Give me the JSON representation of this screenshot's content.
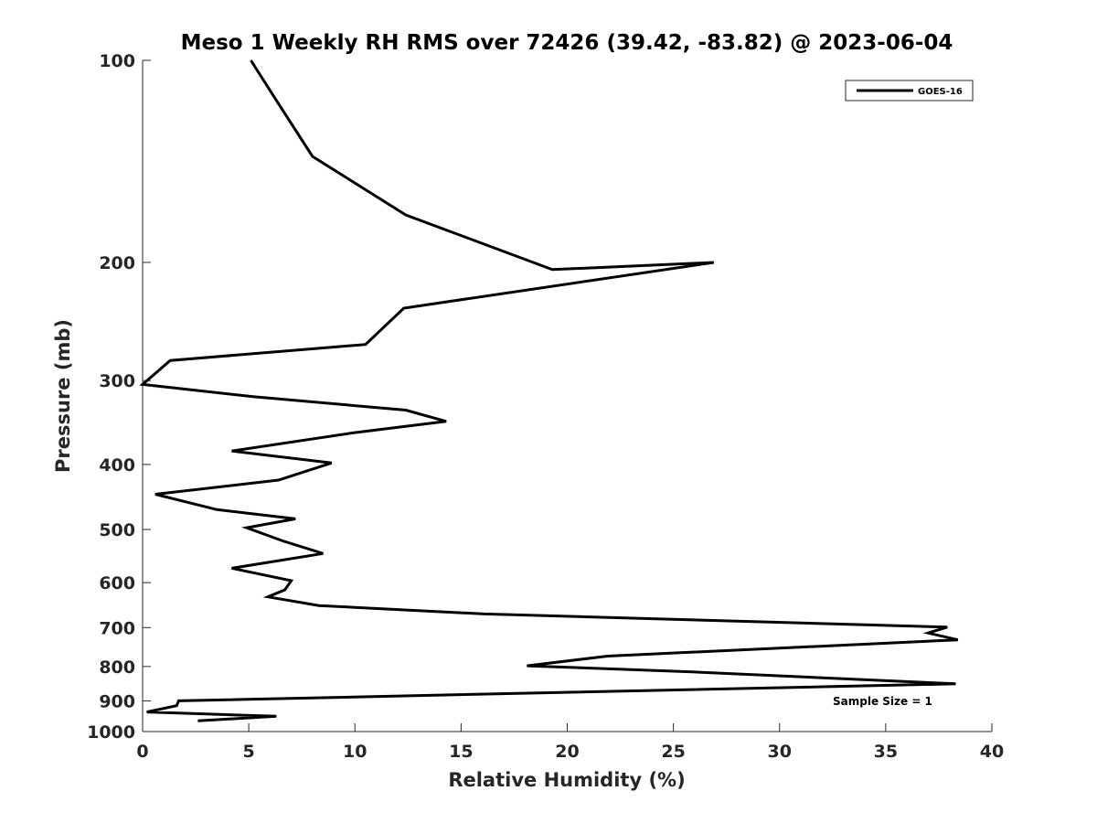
{
  "chart_data": {
    "type": "line",
    "title": "Meso 1 Weekly RH RMS over 72426 (39.42, -83.82) @ 2023-06-04",
    "xlabel": "Relative Humidity (%)",
    "ylabel": "Pressure (mb)",
    "xlim": [
      0,
      40
    ],
    "ylim": [
      100,
      1000
    ],
    "y_scale": "log",
    "y_reversed": true,
    "xticks": [
      0,
      5,
      10,
      15,
      20,
      25,
      30,
      35,
      40
    ],
    "yticks": [
      100,
      200,
      300,
      400,
      500,
      600,
      700,
      800,
      900,
      1000
    ],
    "grid": false,
    "legend_position": "top-right",
    "annotation": "Sample Size = 1",
    "series": [
      {
        "name": "GOES-16",
        "color": "#000000",
        "points": [
          [
            5.1,
            100
          ],
          [
            6.4,
            116
          ],
          [
            8.0,
            139
          ],
          [
            12.4,
            170
          ],
          [
            19.3,
            205
          ],
          [
            26.9,
            200
          ],
          [
            12.3,
            234
          ],
          [
            10.5,
            265
          ],
          [
            1.3,
            280
          ],
          [
            0.0,
            304
          ],
          [
            5.2,
            317
          ],
          [
            12.4,
            332
          ],
          [
            14.3,
            345
          ],
          [
            9.9,
            359
          ],
          [
            4.2,
            382
          ],
          [
            8.9,
            398
          ],
          [
            6.4,
            422
          ],
          [
            0.6,
            443
          ],
          [
            3.5,
            467
          ],
          [
            7.2,
            482
          ],
          [
            4.9,
            497
          ],
          [
            6.6,
            520
          ],
          [
            8.5,
            543
          ],
          [
            4.2,
            571
          ],
          [
            7.0,
            596
          ],
          [
            6.7,
            615
          ],
          [
            5.9,
            630
          ],
          [
            8.3,
            649
          ],
          [
            16.1,
            668
          ],
          [
            37.9,
            699
          ],
          [
            37.0,
            713
          ],
          [
            38.4,
            730
          ],
          [
            21.9,
            772
          ],
          [
            18.1,
            798
          ],
          [
            25.9,
            815
          ],
          [
            38.3,
            849
          ],
          [
            1.7,
            900
          ],
          [
            1.6,
            915
          ],
          [
            0.2,
            935
          ],
          [
            6.3,
            949
          ],
          [
            2.6,
            964
          ]
        ]
      }
    ]
  }
}
